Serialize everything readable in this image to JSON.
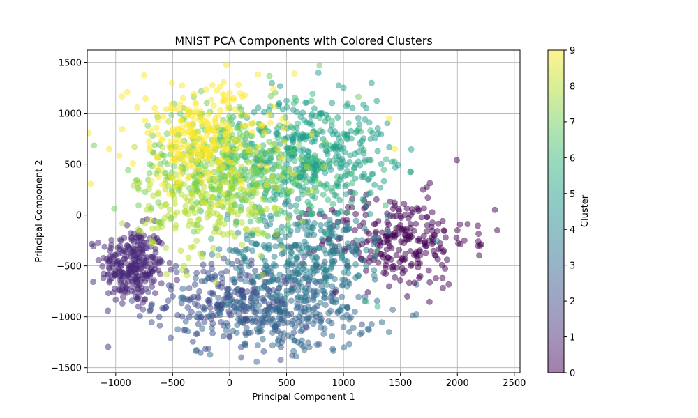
{
  "chart_data": {
    "type": "scatter",
    "title": "MNIST PCA Components with Colored Clusters",
    "xlabel": "Principal Component 1",
    "ylabel": "Principal Component 2",
    "xlim": [
      -1250,
      2550
    ],
    "ylim": [
      -1550,
      1620
    ],
    "x_ticks": [
      -1000,
      -500,
      0,
      500,
      1000,
      1500,
      2000,
      2500
    ],
    "y_ticks": [
      -1500,
      -1000,
      -500,
      0,
      500,
      1000,
      1500
    ],
    "grid": true,
    "point_alpha": 0.5,
    "colorbar": {
      "label": "Cluster",
      "min": 0,
      "max": 9,
      "ticks": [
        0,
        1,
        2,
        3,
        4,
        5,
        6,
        7,
        8,
        9
      ],
      "colormap": "viridis",
      "colors": [
        "#440154",
        "#482878",
        "#3e4989",
        "#31688e",
        "#26828e",
        "#1f9e89",
        "#35b779",
        "#6ece58",
        "#b5de2b",
        "#fde725"
      ]
    },
    "clusters": [
      {
        "cluster": 0,
        "center": [
          1450,
          -250
        ],
        "spread": [
          330,
          230
        ],
        "representative_points": [
          [
            1100,
            -150
          ],
          [
            1300,
            -300
          ],
          [
            1500,
            -100
          ],
          [
            1650,
            -250
          ],
          [
            1800,
            -200
          ],
          [
            2000,
            -150
          ],
          [
            2200,
            -300
          ],
          [
            2330,
            50
          ],
          [
            2350,
            -150
          ],
          [
            1400,
            -700
          ],
          [
            1560,
            -800
          ],
          [
            1700,
            250
          ],
          [
            1200,
            200
          ],
          [
            900,
            50
          ]
        ]
      },
      {
        "cluster": 1,
        "center": [
          -850,
          -500
        ],
        "spread": [
          140,
          190
        ],
        "representative_points": [
          [
            -1050,
            -350
          ],
          [
            -1000,
            -550
          ],
          [
            -950,
            -750
          ],
          [
            -900,
            -300
          ],
          [
            -850,
            -650
          ],
          [
            -800,
            -900
          ],
          [
            -750,
            -450
          ],
          [
            -700,
            -600
          ],
          [
            -900,
            -100
          ],
          [
            -800,
            -200
          ]
        ]
      },
      {
        "cluster": 2,
        "center": [
          100,
          -850
        ],
        "spread": [
          380,
          200
        ],
        "representative_points": [
          [
            -500,
            -800
          ],
          [
            -250,
            -1000
          ],
          [
            0,
            -1200
          ],
          [
            100,
            -1300
          ],
          [
            200,
            -1050
          ],
          [
            300,
            -1340
          ],
          [
            450,
            -1300
          ],
          [
            550,
            -1380
          ],
          [
            -100,
            -700
          ],
          [
            350,
            -900
          ]
        ]
      },
      {
        "cluster": 3,
        "center": [
          500,
          -950
        ],
        "spread": [
          380,
          200
        ],
        "representative_points": [
          [
            200,
            -800
          ],
          [
            400,
            -1100
          ],
          [
            600,
            -1250
          ],
          [
            800,
            -1050
          ],
          [
            1000,
            -1100
          ],
          [
            1100,
            -950
          ],
          [
            700,
            -1300
          ],
          [
            1400,
            -1150
          ],
          [
            1050,
            -1270
          ],
          [
            900,
            -700
          ]
        ]
      },
      {
        "cluster": 4,
        "center": [
          700,
          -350
        ],
        "spread": [
          350,
          220
        ],
        "representative_points": [
          [
            300,
            -300
          ],
          [
            500,
            -500
          ],
          [
            700,
            -200
          ],
          [
            900,
            -450
          ],
          [
            1000,
            -150
          ],
          [
            1200,
            -500
          ],
          [
            600,
            -650
          ],
          [
            800,
            -100
          ],
          [
            1100,
            -300
          ]
        ]
      },
      {
        "cluster": 5,
        "center": [
          750,
          650
        ],
        "spread": [
          330,
          260
        ],
        "representative_points": [
          [
            500,
            500
          ],
          [
            700,
            900
          ],
          [
            900,
            1100
          ],
          [
            1000,
            1250
          ],
          [
            1200,
            1050
          ],
          [
            1300,
            850
          ],
          [
            1100,
            600
          ],
          [
            800,
            300
          ],
          [
            1250,
            400
          ]
        ]
      },
      {
        "cluster": 6,
        "center": [
          500,
          450
        ],
        "spread": [
          380,
          280
        ],
        "representative_points": [
          [
            200,
            300
          ],
          [
            400,
            700
          ],
          [
            600,
            900
          ],
          [
            800,
            1000
          ],
          [
            1000,
            800
          ],
          [
            1300,
            -900
          ],
          [
            1200,
            -850
          ],
          [
            450,
            200
          ],
          [
            700,
            100
          ]
        ]
      },
      {
        "cluster": 7,
        "center": [
          -100,
          550
        ],
        "spread": [
          340,
          280
        ],
        "representative_points": [
          [
            -550,
            800
          ],
          [
            -400,
            950
          ],
          [
            -200,
            1100
          ],
          [
            0,
            1050
          ],
          [
            -300,
            300
          ],
          [
            -100,
            100
          ],
          [
            200,
            900
          ],
          [
            400,
            1200
          ],
          [
            790,
            1470
          ],
          [
            -700,
            500
          ]
        ]
      },
      {
        "cluster": 8,
        "center": [
          -150,
          150
        ],
        "spread": [
          340,
          280
        ],
        "representative_points": [
          [
            -500,
            200
          ],
          [
            -300,
            -100
          ],
          [
            -100,
            -400
          ],
          [
            0,
            400
          ],
          [
            200,
            100
          ],
          [
            -600,
            600
          ],
          [
            -400,
            -500
          ],
          [
            100,
            700
          ],
          [
            -700,
            300
          ]
        ]
      },
      {
        "cluster": 9,
        "center": [
          -250,
          750
        ],
        "spread": [
          320,
          260
        ],
        "representative_points": [
          [
            -600,
            450
          ],
          [
            -500,
            800
          ],
          [
            -300,
            1000
          ],
          [
            0,
            1200
          ],
          [
            250,
            1380
          ],
          [
            -200,
            600
          ],
          [
            570,
            1390
          ],
          [
            1400,
            950
          ],
          [
            1450,
            650
          ],
          [
            -450,
            300
          ]
        ]
      }
    ]
  }
}
